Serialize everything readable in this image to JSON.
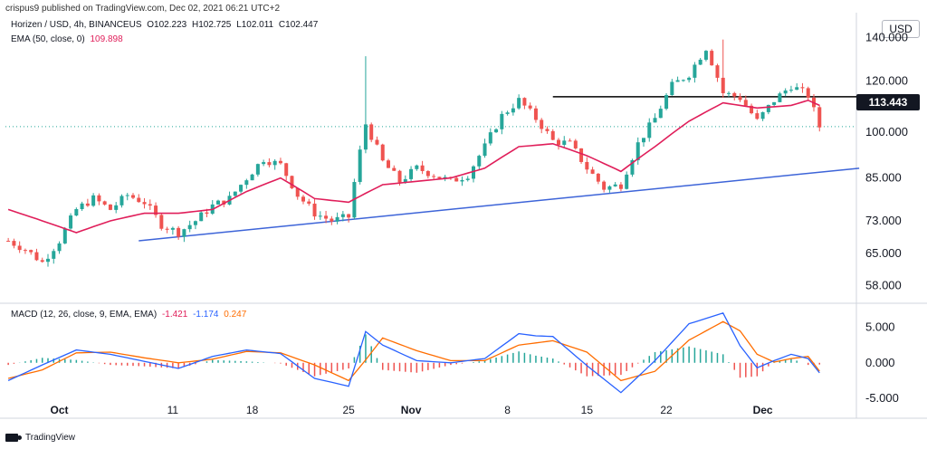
{
  "header": {
    "published": "crispus9 published on TradingView.com, Dec 02, 2021 06:21 UTC+2",
    "symbol": "Horizen / USD, 4h, BINANCEUS",
    "ohlc": {
      "O": "O102.223",
      "H": "H102.725",
      "L": "L102.011",
      "C": "C102.447"
    },
    "ema_label": "EMA (50, close, 0)",
    "ema_value": "109.898",
    "macd_label": "MACD (12, 26, close, 9, EMA, EMA)",
    "macd_values": [
      "-1.421",
      "-1.174",
      "0.247"
    ],
    "currency": "USD",
    "last_price_tag": "113.443"
  },
  "footer": {
    "brand": "TradingView"
  },
  "colors": {
    "up": "#26a69a",
    "down": "#ef5350",
    "ema": "#e01e5a",
    "trend": "#3d64d8",
    "resistance": "#000000",
    "macd": "#2962ff",
    "signal": "#ff6d00"
  },
  "chart_data": [
    {
      "type": "candlestick",
      "title": "Horizen / USD, 4h, BINANCEUS",
      "ylim": [
        55,
        150
      ],
      "y_scale": "log",
      "ytick_labels": [
        "140.000",
        "120.000",
        "100.000",
        "85.000",
        "73.000",
        "65.000",
        "58.000"
      ],
      "yticks": [
        140,
        120,
        100,
        85,
        73,
        65,
        58
      ],
      "xtick_labels": [
        "Oct",
        "11",
        "18",
        "25",
        "Nov",
        "8",
        "15",
        "22",
        "Dec"
      ],
      "close_path": [
        [
          0,
          68
        ],
        [
          3,
          66
        ],
        [
          6,
          63
        ],
        [
          9,
          68
        ],
        [
          12,
          76
        ],
        [
          15,
          79
        ],
        [
          18,
          76
        ],
        [
          21,
          80
        ],
        [
          24,
          78
        ],
        [
          27,
          72
        ],
        [
          30,
          70
        ],
        [
          33,
          73
        ],
        [
          36,
          77
        ],
        [
          39,
          79
        ],
        [
          42,
          85
        ],
        [
          45,
          91
        ],
        [
          48,
          89
        ],
        [
          51,
          80
        ],
        [
          54,
          75
        ],
        [
          57,
          73
        ],
        [
          60,
          74
        ],
        [
          63,
          103
        ],
        [
          66,
          90
        ],
        [
          69,
          84
        ],
        [
          72,
          88
        ],
        [
          75,
          86
        ],
        [
          78,
          84
        ],
        [
          81,
          86
        ],
        [
          84,
          95
        ],
        [
          87,
          106
        ],
        [
          90,
          112
        ],
        [
          93,
          105
        ],
        [
          96,
          97
        ],
        [
          99,
          96
        ],
        [
          102,
          88
        ],
        [
          105,
          82
        ],
        [
          108,
          83
        ],
        [
          111,
          96
        ],
        [
          114,
          105
        ],
        [
          117,
          118
        ],
        [
          120,
          123
        ],
        [
          123,
          135
        ],
        [
          126,
          115
        ],
        [
          129,
          113
        ],
        [
          132,
          104
        ],
        [
          135,
          112
        ],
        [
          138,
          118
        ],
        [
          141,
          114
        ],
        [
          143,
          102
        ]
      ],
      "series": [
        {
          "name": "EMA (50, close, 0)",
          "type": "line",
          "points": [
            [
              0,
              76
            ],
            [
              6,
              73
            ],
            [
              12,
              70
            ],
            [
              18,
              73
            ],
            [
              24,
              75
            ],
            [
              30,
              75
            ],
            [
              36,
              76
            ],
            [
              42,
              81
            ],
            [
              48,
              85
            ],
            [
              54,
              79
            ],
            [
              60,
              78
            ],
            [
              66,
              83
            ],
            [
              72,
              84
            ],
            [
              78,
              85
            ],
            [
              84,
              88
            ],
            [
              90,
              95
            ],
            [
              96,
              96
            ],
            [
              102,
              92
            ],
            [
              108,
              87
            ],
            [
              114,
              95
            ],
            [
              120,
              104
            ],
            [
              126,
              111
            ],
            [
              132,
              109
            ],
            [
              138,
              110
            ],
            [
              141,
              112
            ],
            [
              143,
              110
            ]
          ]
        },
        {
          "name": "trendline",
          "type": "line",
          "points": [
            [
              23,
              68
            ],
            [
              150,
              88
            ]
          ]
        },
        {
          "name": "resistance",
          "type": "line",
          "points": [
            [
              96,
              113.443
            ],
            [
              150,
              113.443
            ]
          ]
        }
      ]
    },
    {
      "type": "macd",
      "title": "MACD (12, 26, close, 9, EMA, EMA)",
      "ylim": [
        -5,
        8
      ],
      "ytick_labels": [
        "5.000",
        "0.000",
        "-5.000"
      ],
      "yticks": [
        5,
        0,
        -5
      ],
      "series": [
        {
          "name": "MACD",
          "points": [
            [
              0,
              -2.5
            ],
            [
              6,
              -0.3
            ],
            [
              12,
              1.8
            ],
            [
              18,
              1.2
            ],
            [
              24,
              0.2
            ],
            [
              30,
              -0.8
            ],
            [
              36,
              0.9
            ],
            [
              42,
              1.8
            ],
            [
              48,
              1.3
            ],
            [
              54,
              -2.2
            ],
            [
              60,
              -3.3
            ],
            [
              63,
              4.4
            ],
            [
              66,
              2.5
            ],
            [
              72,
              0.3
            ],
            [
              78,
              0
            ],
            [
              84,
              0.6
            ],
            [
              90,
              4.1
            ],
            [
              93,
              3.8
            ],
            [
              96,
              3.7
            ],
            [
              102,
              -0.4
            ],
            [
              108,
              -4.2
            ],
            [
              114,
              0.3
            ],
            [
              120,
              5.5
            ],
            [
              126,
              7.0
            ],
            [
              129,
              2.4
            ],
            [
              132,
              -0.7
            ],
            [
              135,
              0.3
            ],
            [
              138,
              1.2
            ],
            [
              141,
              0.6
            ],
            [
              143,
              -1.421
            ]
          ]
        },
        {
          "name": "Signal",
          "points": [
            [
              0,
              -2.2
            ],
            [
              6,
              -1.0
            ],
            [
              12,
              1.4
            ],
            [
              18,
              1.5
            ],
            [
              24,
              0.7
            ],
            [
              30,
              0
            ],
            [
              36,
              0.5
            ],
            [
              42,
              1.6
            ],
            [
              48,
              1.4
            ],
            [
              54,
              -0.3
            ],
            [
              60,
              -2.5
            ],
            [
              63,
              0.4
            ],
            [
              66,
              3.5
            ],
            [
              72,
              1.7
            ],
            [
              78,
              0.3
            ],
            [
              84,
              0.3
            ],
            [
              90,
              2.5
            ],
            [
              96,
              3.1
            ],
            [
              102,
              1.5
            ],
            [
              108,
              -2.5
            ],
            [
              114,
              -1.2
            ],
            [
              120,
              3.2
            ],
            [
              126,
              5.8
            ],
            [
              129,
              4.5
            ],
            [
              132,
              1.2
            ],
            [
              135,
              0.1
            ],
            [
              138,
              0.6
            ],
            [
              141,
              0.9
            ],
            [
              143,
              -1.174
            ]
          ]
        },
        {
          "name": "Histogram",
          "type": "bar",
          "note": "difference of MACD and Signal"
        }
      ]
    }
  ]
}
